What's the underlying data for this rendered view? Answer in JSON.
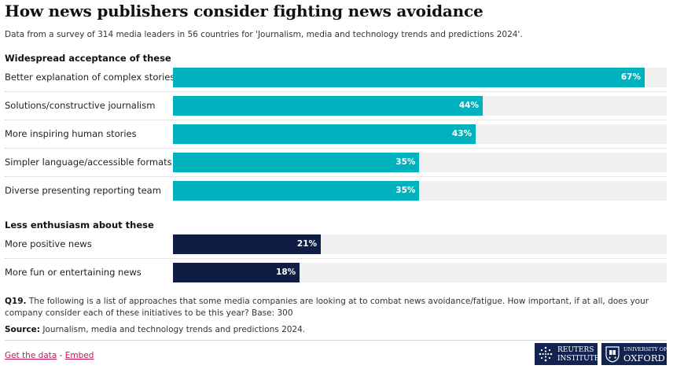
{
  "header": {
    "title": "How news publishers consider fighting news avoidance",
    "subtitle": "Data from a survey of 314 media leaders in 56 countries for 'Journalism, media and technology trends and predictions 2024'."
  },
  "colors": {
    "accent": "#00b2bd",
    "dark": "#0f1d45",
    "track": "#f0f0f0",
    "link": "#c2185b"
  },
  "chart_data": {
    "type": "bar",
    "orientation": "horizontal",
    "title": "How news publishers consider fighting news avoidance",
    "xlim": [
      0,
      70
    ],
    "value_suffix": "%",
    "groups": [
      {
        "label": "Widespread acceptance of these",
        "color": "#00b2bd",
        "categories": [
          "Better explanation of complex stories",
          "Solutions/constructive journalism",
          "More inspiring human stories",
          "Simpler language/accessible formats",
          "Diverse presenting reporting team"
        ],
        "values": [
          67,
          44,
          43,
          35,
          35
        ],
        "labels": [
          "67%",
          "44%",
          "43%",
          "35%",
          "35%"
        ]
      },
      {
        "label": "Less enthusiasm about these",
        "color": "#0f1d45",
        "categories": [
          "More positive news",
          "More fun or entertaining news"
        ],
        "values": [
          21,
          18
        ],
        "labels": [
          "21%",
          "18%"
        ]
      }
    ]
  },
  "notes": {
    "question_label": "Q19.",
    "question_text": " The following is a list of approaches that some media companies are looking at to combat news avoidance/fatigue. How important, if at all, does your company consider each of these initiatives to be this year? Base: 300",
    "source_label": "Source:",
    "source_text": " Journalism, media and technology trends and predictions 2024."
  },
  "footer": {
    "get_data": "Get the data",
    "separator": " - ",
    "embed": "Embed",
    "logo_reuters_line1": "REUTERS",
    "logo_reuters_line2": "INSTITUTE",
    "logo_oxford_line1": "UNIVERSITY OF",
    "logo_oxford_line2": "OXFORD"
  }
}
